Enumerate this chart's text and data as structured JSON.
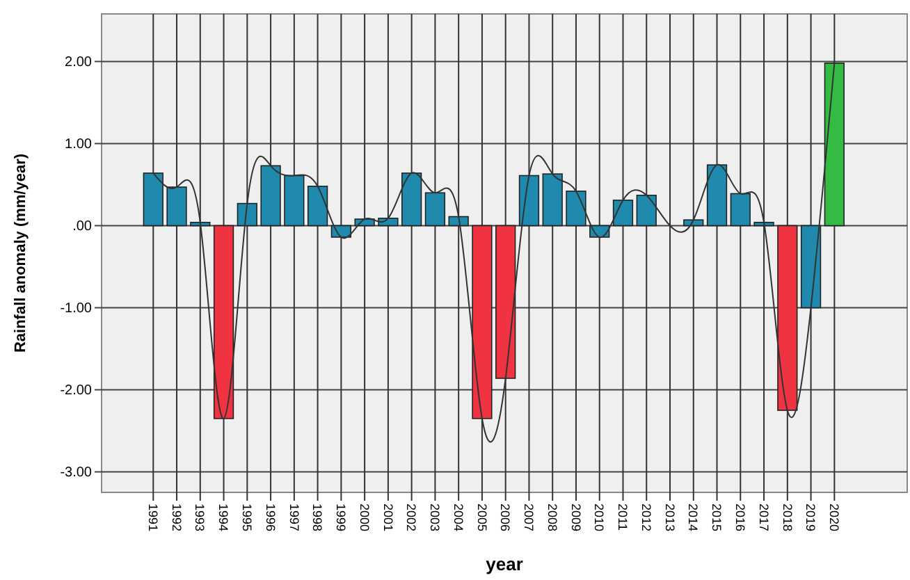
{
  "chart_data": {
    "type": "bar",
    "xlabel": "year",
    "ylabel": "Rainfall anomaly (mm/year)",
    "categories": [
      "1991",
      "1992",
      "1993",
      "1994",
      "1995",
      "1996",
      "1997",
      "1998",
      "1999",
      "2000",
      "2001",
      "2002",
      "2003",
      "2004",
      "2005",
      "2006",
      "2007",
      "2008",
      "2009",
      "2010",
      "2011",
      "2012",
      "2013",
      "2014",
      "2015",
      "2016",
      "2017",
      "2018",
      "2019",
      "2020"
    ],
    "series": [
      {
        "colors": [
          "#1f8aad",
          "#1f8aad",
          "#1f8aad",
          "#ef3340",
          "#1f8aad",
          "#1f8aad",
          "#1f8aad",
          "#1f8aad",
          "#1f8aad",
          "#1f8aad",
          "#1f8aad",
          "#1f8aad",
          "#1f8aad",
          "#1f8aad",
          "#ef3340",
          "#ef3340",
          "#1f8aad",
          "#1f8aad",
          "#1f8aad",
          "#1f8aad",
          "#1f8aad",
          "#1f8aad",
          "#1f8aad",
          "#1f8aad",
          "#1f8aad",
          "#1f8aad",
          "#1f8aad",
          "#ef3340",
          "#1f8aad",
          "#33bb44"
        ],
        "values": [
          0.64,
          0.47,
          0.04,
          -2.35,
          0.27,
          0.73,
          0.61,
          0.48,
          -0.14,
          0.08,
          0.09,
          0.64,
          0.4,
          0.11,
          -2.35,
          -1.86,
          0.61,
          0.63,
          0.42,
          -0.14,
          0.31,
          0.37,
          0,
          0.07,
          0.74,
          0.39,
          0.04,
          -2.25,
          -1.0,
          1.98
        ]
      },
      {
        "type": "line",
        "color": "#333333",
        "values": [
          0.64,
          0.47,
          0.04,
          -2.35,
          0.27,
          0.73,
          0.61,
          0.48,
          -0.14,
          0.08,
          0.09,
          0.64,
          0.4,
          0.11,
          -2.35,
          -1.86,
          0.61,
          0.63,
          0.42,
          -0.14,
          0.31,
          0.37,
          0,
          0.07,
          0.74,
          0.39,
          0.04,
          -2.25,
          -1.0,
          1.98
        ]
      }
    ],
    "ylim": [
      -3.25,
      2.58
    ],
    "yticks": [
      {
        "value": -3,
        "label": "-3.00"
      },
      {
        "value": -2,
        "label": "-2.00"
      },
      {
        "value": -1,
        "label": "-1.00"
      },
      {
        "value": 0,
        "label": ".00"
      },
      {
        "value": 1,
        "label": "1.00"
      },
      {
        "value": 2,
        "label": "2.00"
      }
    ],
    "grid": true,
    "marker": "none",
    "line_style": "solid"
  }
}
